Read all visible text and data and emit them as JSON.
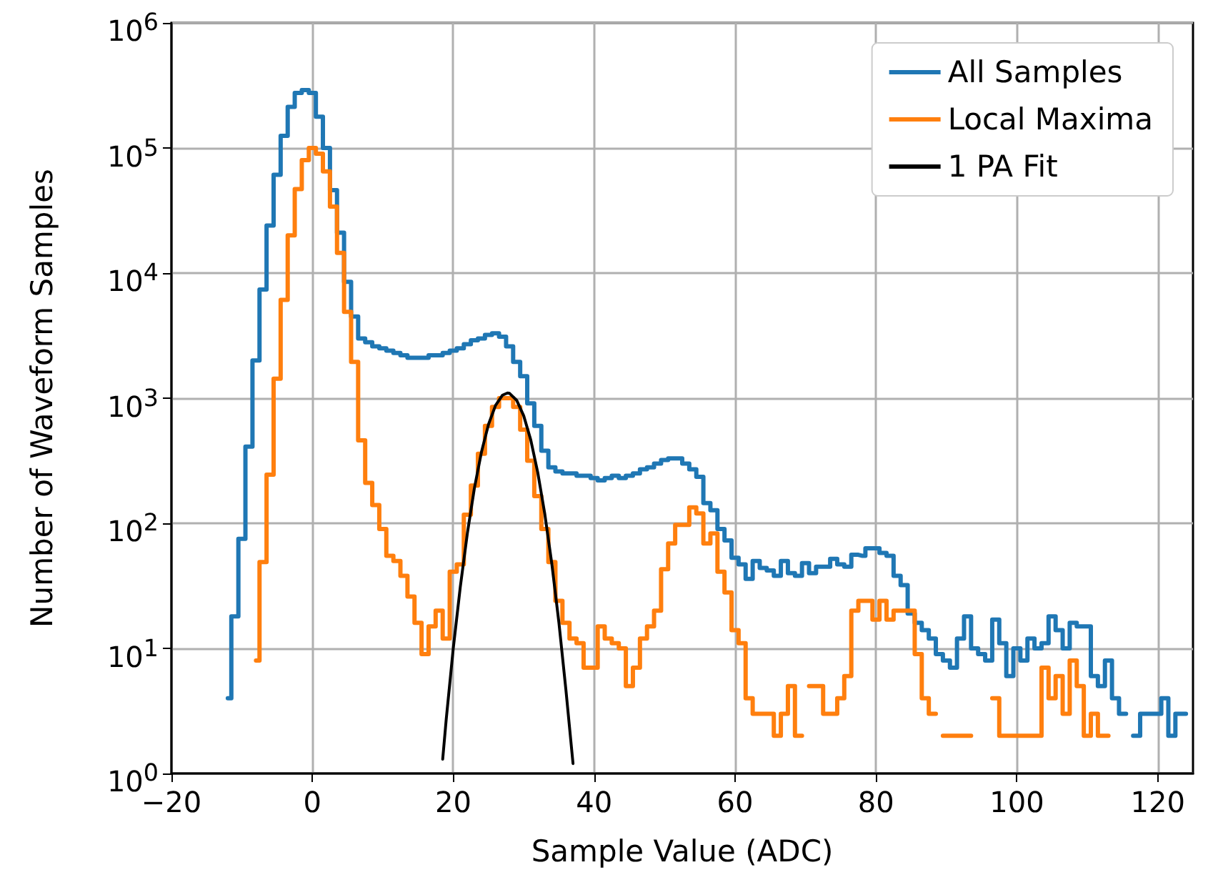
{
  "chart_data": {
    "type": "step",
    "xlabel": "Sample Value (ADC)",
    "ylabel": "Number of Waveform Samples",
    "log": "y",
    "grid": true,
    "legend": "top right",
    "marker": "none",
    "line_style": "solid",
    "xlim": [
      -20,
      125
    ],
    "xticks": [
      {
        "value": -20,
        "label": "−20"
      },
      0,
      20,
      40,
      60,
      80,
      100,
      120
    ],
    "ylim": [
      1,
      1000000
    ],
    "yticks": [
      {
        "value": 1,
        "label": "10$^{0}$"
      },
      {
        "value": 10,
        "label": "10$^{1}$"
      },
      {
        "value": 100,
        "label": "10$^{2}$"
      },
      {
        "value": 1000,
        "label": "10$^{3}$"
      },
      {
        "value": 10000,
        "label": "10$^{4}$"
      },
      {
        "value": 100000,
        "label": "10$^{5}$"
      },
      {
        "value": 1000000,
        "label": "10$^{6}$"
      }
    ],
    "series": [
      {
        "name": "All Samples",
        "color": "#1f77b4",
        "x": [
          -12,
          -11,
          -10,
          -9,
          -8,
          -7,
          -6,
          -5,
          -4,
          -3,
          -2,
          -1,
          0,
          1,
          2,
          3,
          4,
          5,
          6,
          7,
          8,
          9,
          10,
          11,
          12,
          13,
          14,
          15,
          16,
          17,
          18,
          19,
          20,
          21,
          22,
          23,
          24,
          25,
          26,
          27,
          28,
          29,
          30,
          31,
          32,
          33,
          34,
          35,
          36,
          37,
          38,
          39,
          40,
          41,
          42,
          43,
          44,
          45,
          46,
          47,
          48,
          49,
          50,
          51,
          52,
          53,
          54,
          55,
          56,
          57,
          58,
          59,
          60,
          61,
          62,
          63,
          64,
          65,
          66,
          67,
          68,
          69,
          70,
          71,
          72,
          73,
          74,
          75,
          76,
          77,
          78,
          79,
          80,
          81,
          82,
          83,
          84,
          85,
          86,
          87,
          88,
          89,
          90,
          91,
          92,
          93,
          94,
          95,
          96,
          97,
          98,
          99,
          100,
          101,
          102,
          103,
          104,
          105,
          106,
          107,
          108,
          109,
          110,
          111,
          112,
          113,
          114,
          115,
          116,
          117,
          118,
          119,
          120,
          121,
          122,
          123,
          124
        ],
        "values": [
          4,
          18,
          75,
          410,
          2000,
          7400,
          24000,
          61000,
          125000,
          213000,
          275000,
          290000,
          275000,
          178000,
          100000,
          46000,
          21000,
          8500,
          4500,
          3000,
          2800,
          2600,
          2500,
          2400,
          2300,
          2200,
          2100,
          2100,
          2100,
          2200,
          2200,
          2300,
          2400,
          2500,
          2700,
          2900,
          3000,
          3200,
          3300,
          3100,
          2600,
          1950,
          1500,
          910,
          600,
          380,
          280,
          260,
          250,
          250,
          240,
          240,
          230,
          220,
          230,
          240,
          230,
          240,
          250,
          270,
          280,
          300,
          320,
          330,
          330,
          300,
          270,
          235,
          145,
          127,
          90,
          73,
          53,
          47,
          36,
          50,
          44,
          42,
          38,
          50,
          40,
          38,
          48,
          40,
          45,
          45,
          52,
          47,
          45,
          56,
          55,
          63,
          63,
          58,
          55,
          38,
          32,
          19,
          16,
          14,
          12,
          9,
          8,
          7,
          12,
          18,
          10,
          9,
          8,
          17,
          11,
          6,
          10,
          8,
          12,
          10,
          11,
          18,
          14,
          10,
          16,
          15,
          15,
          6,
          5,
          8,
          4,
          3,
          null,
          2,
          3,
          3,
          3,
          4,
          2,
          3,
          3
        ]
      },
      {
        "name": "Local Maxima",
        "color": "#ff7f0e",
        "x": [
          -8,
          -7,
          -6,
          -5,
          -4,
          -3,
          -2,
          -1,
          0,
          1,
          2,
          3,
          4,
          5,
          6,
          7,
          8,
          9,
          10,
          11,
          12,
          13,
          14,
          15,
          16,
          17,
          18,
          19,
          20,
          21,
          22,
          23,
          24,
          25,
          26,
          27,
          28,
          29,
          30,
          31,
          32,
          33,
          34,
          35,
          36,
          37,
          38,
          39,
          40,
          41,
          42,
          43,
          44,
          45,
          46,
          47,
          48,
          49,
          50,
          51,
          52,
          53,
          54,
          55,
          56,
          57,
          58,
          59,
          60,
          61,
          62,
          63,
          64,
          65,
          66,
          67,
          68,
          69,
          70,
          71,
          72,
          73,
          74,
          75,
          76,
          77,
          78,
          79,
          80,
          81,
          82,
          83,
          84,
          85,
          86,
          87,
          88,
          89,
          90,
          91,
          92,
          93,
          94,
          95,
          96,
          97,
          98,
          99,
          100,
          101,
          102,
          103,
          104,
          105,
          106,
          107,
          108,
          109,
          110,
          111,
          112,
          113
        ],
        "values": [
          8,
          49,
          245,
          1430,
          6100,
          20000,
          47000,
          80000,
          100000,
          90000,
          65000,
          34000,
          14500,
          4900,
          1950,
          460,
          210,
          140,
          90,
          55,
          50,
          38,
          26,
          16,
          9,
          15,
          20,
          12,
          41,
          47,
          117,
          200,
          360,
          600,
          850,
          1000,
          1000,
          850,
          560,
          316,
          165,
          90,
          49,
          24,
          16,
          12,
          11,
          7,
          7,
          15,
          12,
          11,
          10,
          5,
          7,
          12,
          15,
          20,
          43,
          69,
          97,
          97,
          134,
          120,
          69,
          83,
          41,
          28,
          14,
          11,
          4,
          3,
          3,
          3,
          2,
          3,
          5,
          2,
          null,
          5,
          5,
          3,
          3,
          4,
          6,
          20,
          24,
          24,
          17,
          24,
          17,
          20,
          20,
          20,
          9,
          4,
          3,
          null,
          2,
          2,
          2,
          2,
          null,
          null,
          null,
          4,
          2,
          2,
          2,
          2,
          2,
          2,
          7,
          4,
          6,
          3,
          8,
          5,
          2,
          3,
          2,
          2
        ]
      },
      {
        "name": "1 PA Fit",
        "type": "line",
        "color": "#000000",
        "x": [
          18.5,
          19,
          20,
          21,
          22,
          23,
          24,
          25,
          26,
          27,
          27.7,
          28,
          29,
          30,
          31,
          32,
          33,
          34,
          35,
          36,
          37
        ],
        "values": [
          1.3,
          2.7,
          10,
          31,
          83,
          191,
          370,
          617,
          875,
          1058,
          1100,
          1092,
          962,
          723,
          464,
          253,
          118,
          47,
          16,
          4.6,
          1.2
        ]
      }
    ]
  }
}
